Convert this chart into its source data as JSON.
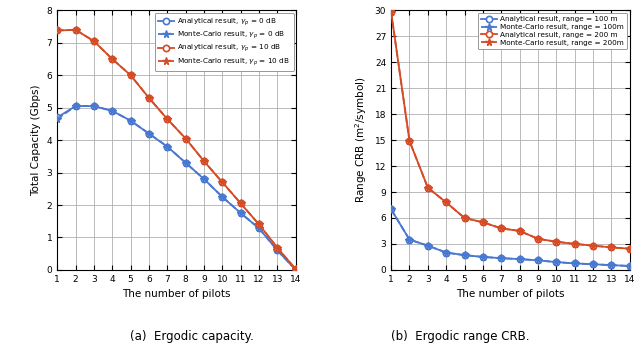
{
  "pilots": [
    1,
    2,
    3,
    4,
    5,
    6,
    7,
    8,
    9,
    10,
    11,
    12,
    13,
    14
  ],
  "cap_blue_analytical": [
    4.7,
    5.05,
    5.05,
    4.9,
    4.6,
    4.2,
    3.8,
    3.3,
    2.8,
    2.25,
    1.75,
    1.28,
    0.6,
    0.0
  ],
  "cap_blue_mc": [
    4.65,
    5.05,
    5.05,
    4.9,
    4.6,
    4.2,
    3.8,
    3.3,
    2.8,
    2.25,
    1.75,
    1.28,
    0.6,
    0.0
  ],
  "cap_red_analytical": [
    7.38,
    7.4,
    7.05,
    6.5,
    6.0,
    5.3,
    4.65,
    4.05,
    3.35,
    2.7,
    2.05,
    1.4,
    0.68,
    0.02
  ],
  "cap_red_mc": [
    7.38,
    7.4,
    7.05,
    6.5,
    6.0,
    5.3,
    4.65,
    4.05,
    3.35,
    2.7,
    2.05,
    1.4,
    0.68,
    0.02
  ],
  "crb_blue_analytical": [
    7.0,
    3.5,
    2.8,
    2.0,
    1.7,
    1.5,
    1.35,
    1.25,
    1.1,
    0.9,
    0.75,
    0.65,
    0.55,
    0.45
  ],
  "crb_blue_mc": [
    7.0,
    3.5,
    2.8,
    2.0,
    1.7,
    1.5,
    1.35,
    1.25,
    1.1,
    0.9,
    0.75,
    0.65,
    0.55,
    0.45
  ],
  "crb_red_analytical": [
    29.8,
    14.9,
    9.5,
    7.8,
    6.0,
    5.5,
    4.8,
    4.5,
    3.6,
    3.25,
    3.0,
    2.8,
    2.6,
    2.45
  ],
  "crb_red_mc": [
    29.8,
    14.9,
    9.5,
    7.8,
    6.0,
    5.5,
    4.8,
    4.5,
    3.6,
    3.25,
    3.0,
    2.8,
    2.6,
    2.45
  ],
  "blue_color": "#4878CF",
  "red_color": "#D44B25",
  "cap_ylabel": "Total Capacity (Gbps)",
  "crb_ylabel": "Range CRB (m$^2$/symbol)",
  "xlabel": "The number of pilots",
  "cap_ylim": [
    0,
    8
  ],
  "crb_ylim": [
    0,
    30
  ],
  "cap_yticks": [
    0,
    1,
    2,
    3,
    4,
    5,
    6,
    7,
    8
  ],
  "crb_yticks": [
    0,
    3,
    6,
    9,
    12,
    15,
    18,
    21,
    24,
    27,
    30
  ],
  "cap_legend": [
    "Analytical result, $\\gamma_p$ = 0 dB",
    "Monte-Carlo result, $\\gamma_p$ = 0 dB",
    "Analytical result, $\\gamma_p$ = 10 dB",
    "Monte-Carlo result, $\\gamma_p$ = 10 dB"
  ],
  "crb_legend": [
    "Analytical result, range = 100 m",
    "Monte-Carlo result, range = 100m",
    "Analytical result, range = 200 m",
    "Monte-Carlo result, range = 200m"
  ],
  "cap_caption": "(a)  Ergodic capacity.",
  "crb_caption": "(b)  Ergodic range CRB.",
  "background_color": "#ffffff",
  "grid_color": "#b0b0b0"
}
